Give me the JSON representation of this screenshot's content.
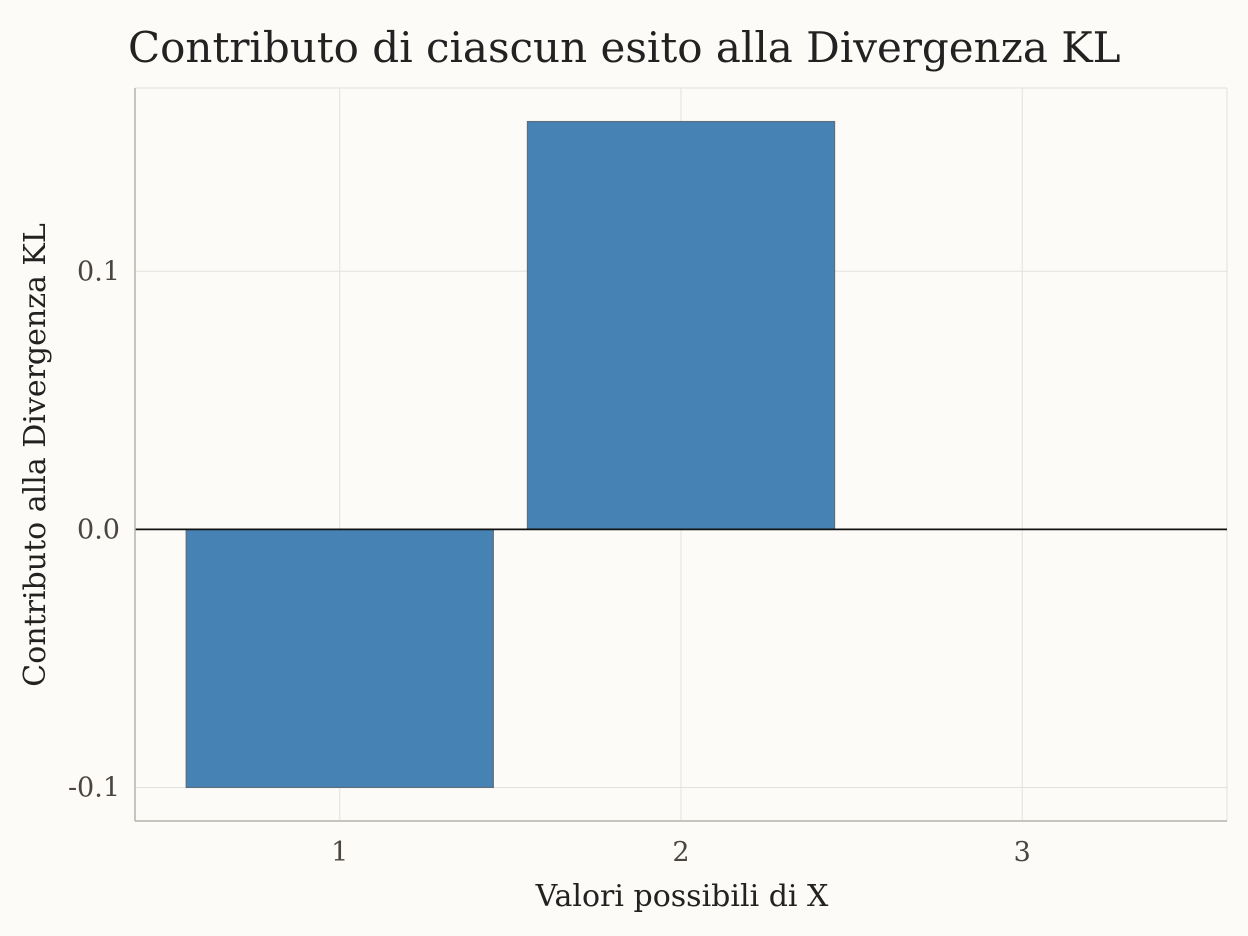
{
  "chart_data": {
    "type": "bar",
    "title": "Contributo di ciascun esito alla Divergenza KL",
    "xlabel": "Valori possibili di X",
    "ylabel": "Contributo alla Divergenza KL",
    "categories": [
      "1",
      "2",
      "3"
    ],
    "values": [
      -0.1,
      0.158,
      0.0
    ],
    "yticks": [
      -0.1,
      0.0,
      0.1
    ],
    "ytick_labels": [
      "-0.1",
      "0.0",
      "0.1"
    ],
    "ylim": [
      -0.113,
      0.171
    ],
    "grid": true,
    "zero_line": true,
    "bar_color": "#4682b4"
  }
}
